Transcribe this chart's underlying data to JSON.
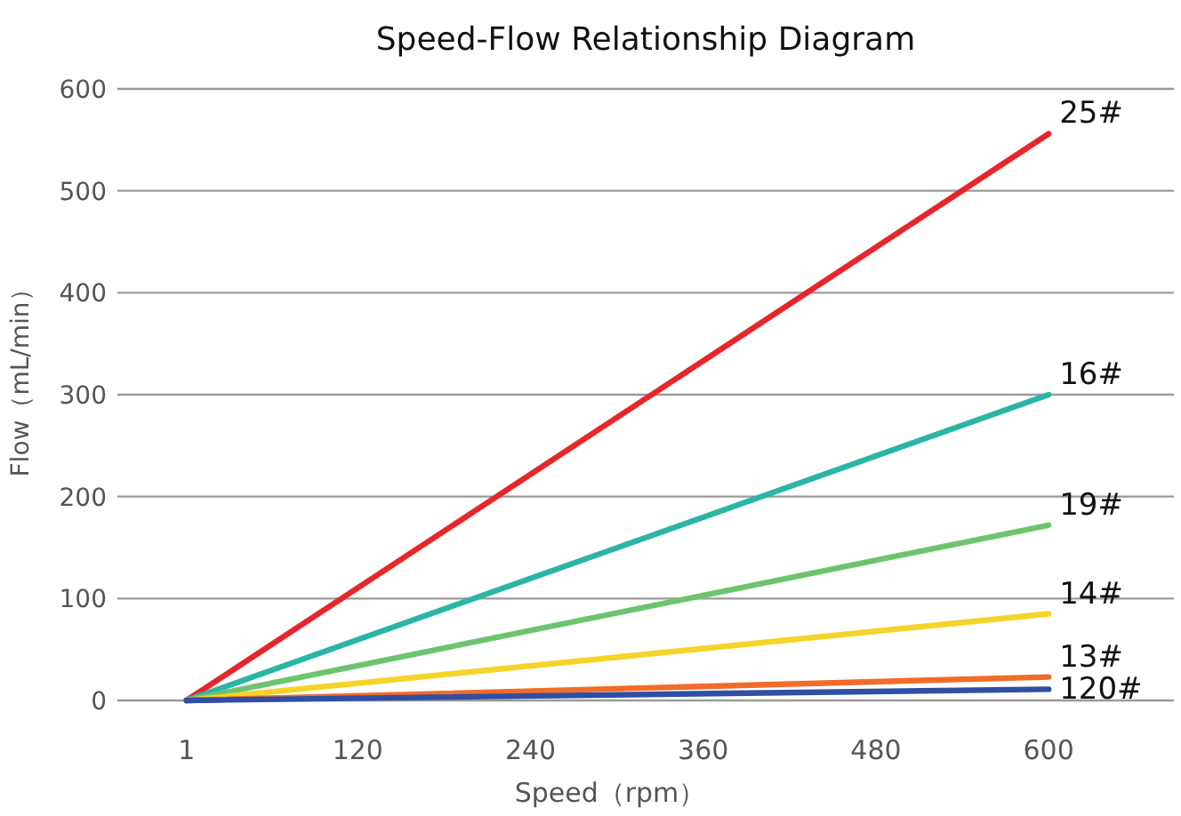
{
  "chart_data": {
    "type": "line",
    "title": "Speed-Flow Relationship Diagram",
    "xlabel": "Speed（rpm）",
    "ylabel": "Flow（mL/min）",
    "x": [
      1,
      600
    ],
    "series": [
      {
        "name": "25#",
        "color": "#e8262a",
        "values": [
          0,
          556
        ]
      },
      {
        "name": "16#",
        "color": "#2ab5a5",
        "values": [
          0,
          300
        ]
      },
      {
        "name": "19#",
        "color": "#6cc56e",
        "values": [
          0,
          172
        ]
      },
      {
        "name": "14#",
        "color": "#f5d328",
        "values": [
          0,
          85
        ]
      },
      {
        "name": "13#",
        "color": "#f26b2a",
        "values": [
          0,
          23
        ]
      },
      {
        "name": "120#",
        "color": "#2e4fa3",
        "values": [
          0,
          11
        ]
      }
    ],
    "xlim": [
      -47,
      687
    ],
    "xticks": [
      1,
      120,
      240,
      360,
      480,
      600
    ],
    "ylim": [
      0,
      600
    ],
    "yticks": [
      0,
      100,
      200,
      300,
      400,
      500,
      600
    ],
    "grid": "y",
    "legend": false,
    "marker": "none",
    "line_style": "solid"
  }
}
